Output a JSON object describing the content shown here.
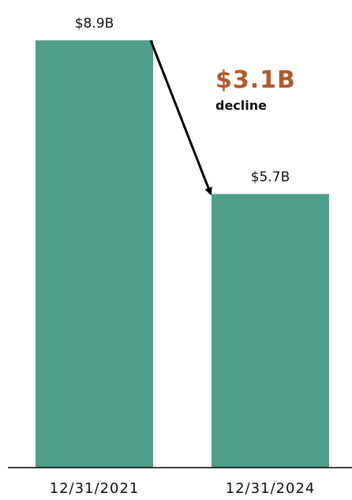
{
  "chart_data": {
    "type": "bar",
    "categories": [
      "12/31/2021",
      "12/31/2024"
    ],
    "values": [
      8.9,
      5.7
    ],
    "data_labels": [
      "$8.9B",
      "$5.7B"
    ],
    "ylim": [
      0,
      9.0
    ],
    "grid": false,
    "annotation": {
      "value": "$3.1B",
      "text": "decline",
      "arrow": "from first bar top to second bar top"
    },
    "colors": {
      "bar": "#4e9e8a",
      "callout": "#b15a2e",
      "text": "#111111",
      "axis": "#000000"
    }
  }
}
